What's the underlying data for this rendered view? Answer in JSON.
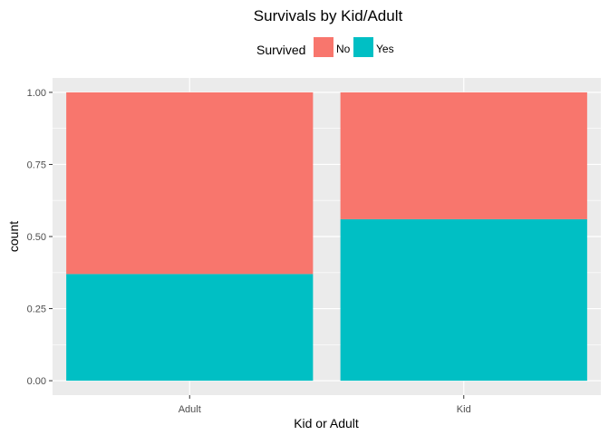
{
  "chart_data": {
    "type": "bar",
    "stacked": true,
    "title": "Survivals by Kid/Adult",
    "xlabel": "Kid or Adult",
    "ylabel": "count",
    "categories": [
      "Adult",
      "Kid"
    ],
    "series": [
      {
        "name": "Yes",
        "values": [
          0.37,
          0.56
        ],
        "color": "#00BFC4"
      },
      {
        "name": "No",
        "values": [
          0.63,
          0.44
        ],
        "color": "#F8766D"
      }
    ],
    "legend": {
      "title": "Survived",
      "position": "top",
      "items": [
        "No",
        "Yes"
      ]
    },
    "ylim": [
      -0.05,
      1.05
    ],
    "yticks": [
      "0.00",
      "0.25",
      "0.50",
      "0.75",
      "1.00"
    ],
    "grid": true,
    "panel_background": "#EBEBEB",
    "grid_color": "#FFFFFF"
  }
}
